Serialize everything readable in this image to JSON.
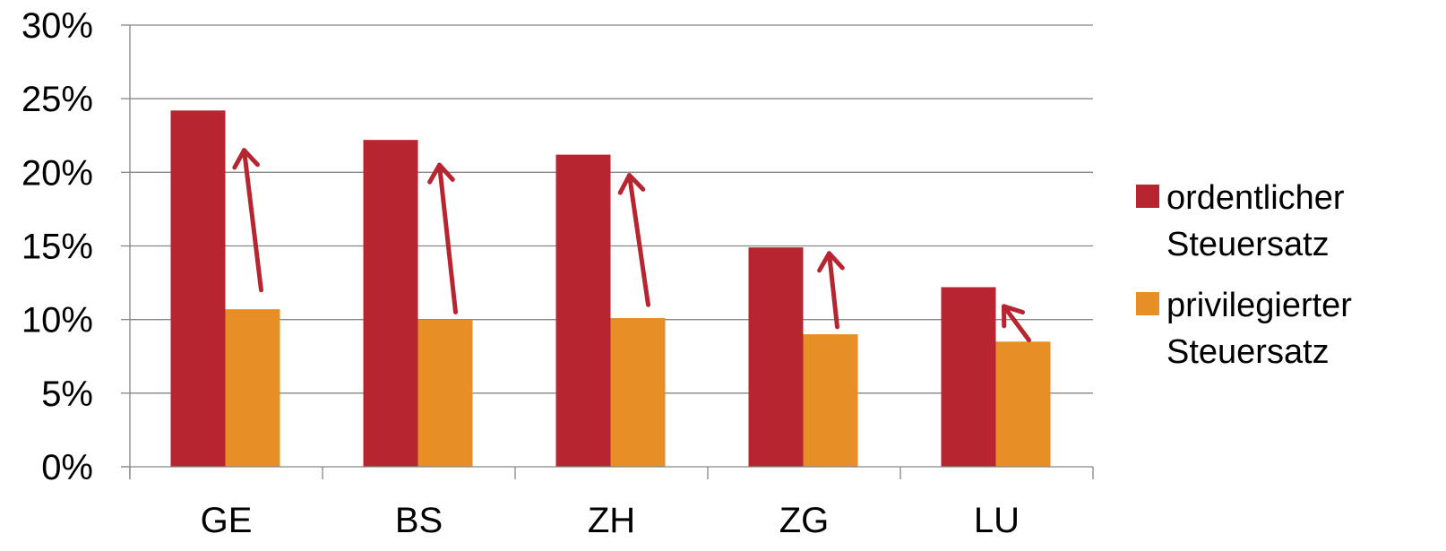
{
  "chart_data": {
    "type": "bar",
    "categories": [
      "GE",
      "BS",
      "ZH",
      "ZG",
      "LU"
    ],
    "series": [
      {
        "name": "ordentlicher Steuersatz",
        "color": "#b72630",
        "values": [
          24.2,
          22.2,
          21.2,
          14.9,
          12.2
        ]
      },
      {
        "name": "privilegierter Steuersatz",
        "color": "#e78f26",
        "values": [
          10.7,
          10.0,
          10.1,
          9.0,
          8.5
        ]
      }
    ],
    "ylim": [
      0,
      30
    ],
    "yticks": [
      "0%",
      "5%",
      "10%",
      "15%",
      "20%",
      "25%",
      "30%"
    ],
    "ytick_values": [
      0,
      5,
      10,
      15,
      20,
      25,
      30
    ],
    "grid": true,
    "legend_position": "right",
    "legend": [
      {
        "line1": "ordentlicher",
        "line2": "Steuersatz"
      },
      {
        "line1": "privilegierter",
        "line2": "Steuersatz"
      }
    ],
    "arrows": {
      "color": "#b72630",
      "items": [
        {
          "category": "GE",
          "from": 12.0,
          "to": 21.5
        },
        {
          "category": "BS",
          "from": 10.5,
          "to": 20.5
        },
        {
          "category": "ZH",
          "from": 11.0,
          "to": 19.8
        },
        {
          "category": "ZG",
          "from": 9.5,
          "to": 14.5
        },
        {
          "category": "LU",
          "from": 8.6,
          "to": 10.9
        }
      ]
    },
    "gridline_color": "#868686",
    "axis_color": "#868686"
  }
}
